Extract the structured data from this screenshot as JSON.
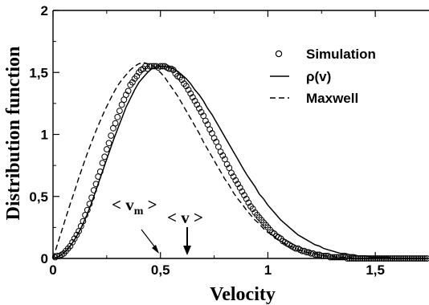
{
  "chart_data": {
    "type": "line",
    "title": "",
    "xlabel": "Velocity",
    "ylabel": "Distribution function",
    "xlim": [
      0,
      1.75
    ],
    "ylim": [
      0,
      2
    ],
    "x_ticks": [
      0,
      0.5,
      1,
      1.5
    ],
    "x_tick_labels": [
      "0",
      "0,5",
      "1",
      "1,5"
    ],
    "y_ticks": [
      0,
      0.5,
      1,
      1.5,
      2
    ],
    "y_tick_labels": [
      "0",
      "0,5",
      "1",
      "1,5",
      "2"
    ],
    "grid": false,
    "legend_position": "top-right",
    "series": [
      {
        "name": "Simulation",
        "style": "open-circles",
        "x": [
          0.01,
          0.02,
          0.03,
          0.04,
          0.05,
          0.06,
          0.07,
          0.08,
          0.09,
          0.1,
          0.11,
          0.12,
          0.13,
          0.14,
          0.15,
          0.16,
          0.17,
          0.18,
          0.19,
          0.2,
          0.21,
          0.22,
          0.23,
          0.24,
          0.25,
          0.26,
          0.27,
          0.28,
          0.29,
          0.3,
          0.31,
          0.32,
          0.33,
          0.34,
          0.35,
          0.36,
          0.37,
          0.38,
          0.39,
          0.4,
          0.41,
          0.42,
          0.43,
          0.44,
          0.45,
          0.46,
          0.47,
          0.48,
          0.49,
          0.5,
          0.51,
          0.52,
          0.53,
          0.54,
          0.55,
          0.56,
          0.57,
          0.58,
          0.59,
          0.6,
          0.61,
          0.62,
          0.63,
          0.64,
          0.65,
          0.66,
          0.67,
          0.68,
          0.69,
          0.7,
          0.71,
          0.72,
          0.73,
          0.74,
          0.75,
          0.76,
          0.77,
          0.78,
          0.79,
          0.8,
          0.81,
          0.82,
          0.83,
          0.84,
          0.85,
          0.86,
          0.87,
          0.88,
          0.89,
          0.9,
          0.91,
          0.92,
          0.93,
          0.94,
          0.95,
          0.96,
          0.97,
          0.98,
          0.99,
          1.0,
          1.01,
          1.02,
          1.03,
          1.04,
          1.05,
          1.06,
          1.07,
          1.08,
          1.09,
          1.1,
          1.11,
          1.12,
          1.13,
          1.14,
          1.15,
          1.16,
          1.17,
          1.18,
          1.19,
          1.2,
          1.21,
          1.22,
          1.23,
          1.24,
          1.25,
          1.26,
          1.27,
          1.28,
          1.29,
          1.3,
          1.31,
          1.32,
          1.33,
          1.34,
          1.35,
          1.36,
          1.37,
          1.38,
          1.39,
          1.4,
          1.41,
          1.42,
          1.43,
          1.44,
          1.45,
          1.46,
          1.47,
          1.48,
          1.49,
          1.5,
          1.51,
          1.52,
          1.53,
          1.54,
          1.55,
          1.56,
          1.57,
          1.58,
          1.59,
          1.6,
          1.61,
          1.62,
          1.63,
          1.64,
          1.65,
          1.66,
          1.67,
          1.68,
          1.69,
          1.7,
          1.71,
          1.72,
          1.73,
          1.74
        ],
        "y": [
          0.01,
          0.02,
          0.02,
          0.03,
          0.04,
          0.06,
          0.08,
          0.1,
          0.13,
          0.16,
          0.19,
          0.22,
          0.26,
          0.3,
          0.35,
          0.39,
          0.44,
          0.49,
          0.55,
          0.6,
          0.66,
          0.7,
          0.77,
          0.82,
          0.88,
          0.93,
          0.99,
          1.05,
          1.09,
          1.14,
          1.19,
          1.24,
          1.28,
          1.32,
          1.35,
          1.4,
          1.42,
          1.45,
          1.47,
          1.5,
          1.52,
          1.53,
          1.55,
          1.53,
          1.55,
          1.55,
          1.55,
          1.55,
          1.54,
          1.55,
          1.55,
          1.55,
          1.54,
          1.53,
          1.53,
          1.52,
          1.49,
          1.47,
          1.46,
          1.44,
          1.41,
          1.39,
          1.36,
          1.33,
          1.3,
          1.27,
          1.24,
          1.21,
          1.18,
          1.15,
          1.11,
          1.08,
          1.04,
          1.01,
          0.97,
          0.94,
          0.9,
          0.86,
          0.83,
          0.8,
          0.76,
          0.73,
          0.69,
          0.66,
          0.63,
          0.6,
          0.57,
          0.54,
          0.51,
          0.48,
          0.45,
          0.42,
          0.4,
          0.37,
          0.35,
          0.33,
          0.31,
          0.29,
          0.27,
          0.25,
          0.23,
          0.21,
          0.2,
          0.18,
          0.17,
          0.16,
          0.14,
          0.13,
          0.12,
          0.11,
          0.1,
          0.09,
          0.08,
          0.08,
          0.07,
          0.06,
          0.06,
          0.05,
          0.05,
          0.04,
          0.04,
          0.03,
          0.03,
          0.03,
          0.02,
          0.02,
          0.02,
          0.02,
          0.01,
          0.01,
          0.01,
          0.01,
          0.01,
          0.01,
          0.01,
          0.01,
          0.0,
          0.0,
          0.0,
          0.0,
          0.0,
          0.0,
          0.0,
          0.0,
          0.0,
          0.0,
          0.0,
          0.0,
          0.0,
          0.0,
          0.0,
          0.0,
          0.0,
          0.0,
          0.0,
          0.0,
          0.0,
          0.0,
          0.0,
          0.0,
          0.0,
          0.0,
          0.0,
          0.0,
          0.0,
          0.0,
          0.0,
          0.0,
          0.0,
          0.0,
          0.0,
          0.0,
          0.0,
          0.0
        ]
      },
      {
        "name": "ρ(v)",
        "style": "solid",
        "x": [
          0.0,
          0.02,
          0.04,
          0.06,
          0.08,
          0.1,
          0.12,
          0.14,
          0.16,
          0.18,
          0.2,
          0.22,
          0.24,
          0.26,
          0.28,
          0.3,
          0.32,
          0.34,
          0.36,
          0.38,
          0.4,
          0.42,
          0.44,
          0.46,
          0.48,
          0.5,
          0.52,
          0.54,
          0.56,
          0.58,
          0.6,
          0.62,
          0.64,
          0.66,
          0.68,
          0.7,
          0.72,
          0.74,
          0.76,
          0.78,
          0.8,
          0.82,
          0.84,
          0.86,
          0.88,
          0.9,
          0.92,
          0.94,
          0.96,
          0.98,
          1.0,
          1.02,
          1.04,
          1.06,
          1.08,
          1.1,
          1.12,
          1.14,
          1.16,
          1.18,
          1.2,
          1.22,
          1.24,
          1.26,
          1.28,
          1.3,
          1.32,
          1.34,
          1.36,
          1.38,
          1.4,
          1.42,
          1.44,
          1.46,
          1.48,
          1.5,
          1.52,
          1.54,
          1.56,
          1.58,
          1.6,
          1.62,
          1.64,
          1.66,
          1.68,
          1.7,
          1.72,
          1.74
        ],
        "y": [
          0.0,
          0.01,
          0.03,
          0.06,
          0.1,
          0.15,
          0.21,
          0.28,
          0.36,
          0.45,
          0.55,
          0.65,
          0.75,
          0.85,
          0.95,
          1.04,
          1.13,
          1.22,
          1.29,
          1.36,
          1.42,
          1.46,
          1.5,
          1.53,
          1.54,
          1.55,
          1.55,
          1.54,
          1.53,
          1.51,
          1.48,
          1.45,
          1.41,
          1.36,
          1.32,
          1.27,
          1.21,
          1.16,
          1.1,
          1.04,
          0.98,
          0.92,
          0.86,
          0.8,
          0.74,
          0.68,
          0.63,
          0.58,
          0.52,
          0.48,
          0.43,
          0.39,
          0.35,
          0.31,
          0.28,
          0.25,
          0.22,
          0.19,
          0.17,
          0.15,
          0.13,
          0.11,
          0.1,
          0.08,
          0.07,
          0.06,
          0.05,
          0.04,
          0.04,
          0.03,
          0.03,
          0.02,
          0.02,
          0.02,
          0.01,
          0.01,
          0.01,
          0.01,
          0.01,
          0.0,
          0.0,
          0.0,
          0.0,
          0.0,
          0.0,
          0.0,
          0.0,
          0.0
        ]
      },
      {
        "name": "Maxwell",
        "style": "dashed",
        "x": [
          0.0,
          0.02,
          0.04,
          0.06,
          0.08,
          0.1,
          0.12,
          0.14,
          0.16,
          0.18,
          0.2,
          0.22,
          0.24,
          0.26,
          0.28,
          0.3,
          0.32,
          0.34,
          0.36,
          0.38,
          0.4,
          0.42,
          0.44,
          0.46,
          0.48,
          0.5,
          0.52,
          0.54,
          0.56,
          0.58,
          0.6,
          0.62,
          0.64,
          0.66,
          0.68,
          0.7,
          0.72,
          0.74,
          0.76,
          0.78,
          0.8,
          0.82,
          0.84,
          0.86,
          0.88,
          0.9,
          0.92,
          0.94,
          0.96,
          0.98,
          1.0,
          1.02,
          1.04,
          1.06,
          1.08,
          1.1,
          1.12,
          1.14,
          1.16,
          1.18,
          1.2,
          1.22,
          1.24,
          1.26,
          1.28,
          1.3,
          1.32,
          1.34,
          1.36,
          1.38,
          1.4,
          1.42,
          1.44,
          1.46,
          1.48,
          1.5
        ],
        "y": [
          0.0,
          0.11,
          0.22,
          0.33,
          0.44,
          0.54,
          0.65,
          0.75,
          0.85,
          0.94,
          1.03,
          1.11,
          1.19,
          1.26,
          1.33,
          1.39,
          1.44,
          1.48,
          1.52,
          1.55,
          1.57,
          1.58,
          1.57,
          1.56,
          1.53,
          1.5,
          1.46,
          1.41,
          1.36,
          1.31,
          1.25,
          1.19,
          1.13,
          1.07,
          1.01,
          0.94,
          0.88,
          0.82,
          0.76,
          0.7,
          0.64,
          0.59,
          0.53,
          0.48,
          0.44,
          0.39,
          0.35,
          0.31,
          0.28,
          0.24,
          0.21,
          0.19,
          0.16,
          0.14,
          0.12,
          0.1,
          0.09,
          0.07,
          0.06,
          0.05,
          0.04,
          0.04,
          0.03,
          0.02,
          0.02,
          0.02,
          0.01,
          0.01,
          0.01,
          0.01,
          0.0,
          0.0,
          0.0,
          0.0,
          0.0,
          0.0
        ]
      }
    ],
    "annotations": [
      {
        "text": "< v",
        "subscript": "m",
        "suffix": " >",
        "x": 0.44,
        "y_target": 0.02,
        "arrow": "diagonal"
      },
      {
        "text": "< v >",
        "x": 0.63,
        "y_target": 0.02,
        "arrow": "vertical"
      }
    ]
  }
}
